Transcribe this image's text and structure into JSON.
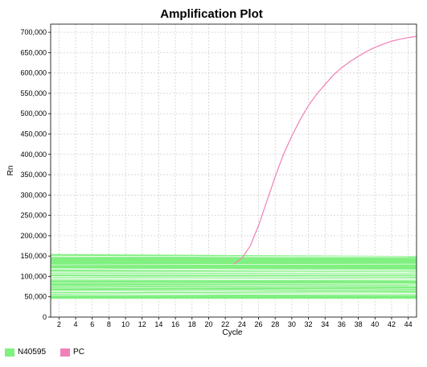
{
  "chart_data": {
    "type": "line",
    "title": "Amplification Plot",
    "xlabel": "Cycle",
    "ylabel": "Rn",
    "xlim": [
      1,
      45
    ],
    "ylim": [
      0,
      720000
    ],
    "x_ticks": [
      2,
      4,
      6,
      8,
      10,
      12,
      14,
      16,
      18,
      20,
      22,
      24,
      26,
      28,
      30,
      32,
      34,
      36,
      38,
      40,
      42,
      44
    ],
    "y_ticks": [
      0,
      50000,
      100000,
      150000,
      200000,
      250000,
      300000,
      350000,
      400000,
      450000,
      500000,
      550000,
      600000,
      650000,
      700000
    ],
    "y_tick_labels": [
      "0",
      "50,000",
      "100,000",
      "150,000",
      "200,000",
      "250,000",
      "300,000",
      "350,000",
      "400,000",
      "450,000",
      "500,000",
      "550,000",
      "600,000",
      "650,000",
      "700,000"
    ],
    "grid": true,
    "legend_position": "bottom-left",
    "series": [
      {
        "name": "N40595",
        "color": "#80f080",
        "band_min": [
          45000,
          45000
        ],
        "band_max": [
          155000,
          150000
        ],
        "x_range": [
          1,
          45
        ]
      },
      {
        "name": "PC",
        "color": "#f080b8",
        "x": [
          23,
          24,
          25,
          26,
          27,
          28,
          29,
          30,
          31,
          32,
          33,
          34,
          35,
          36,
          37,
          38,
          39,
          40,
          41,
          42,
          43,
          44,
          45
        ],
        "values": [
          130000,
          145000,
          175000,
          225000,
          285000,
          345000,
          400000,
          445000,
          485000,
          520000,
          548000,
          572000,
          595000,
          613000,
          628000,
          641000,
          653000,
          663000,
          671000,
          678000,
          683000,
          687000,
          690000
        ]
      }
    ]
  }
}
